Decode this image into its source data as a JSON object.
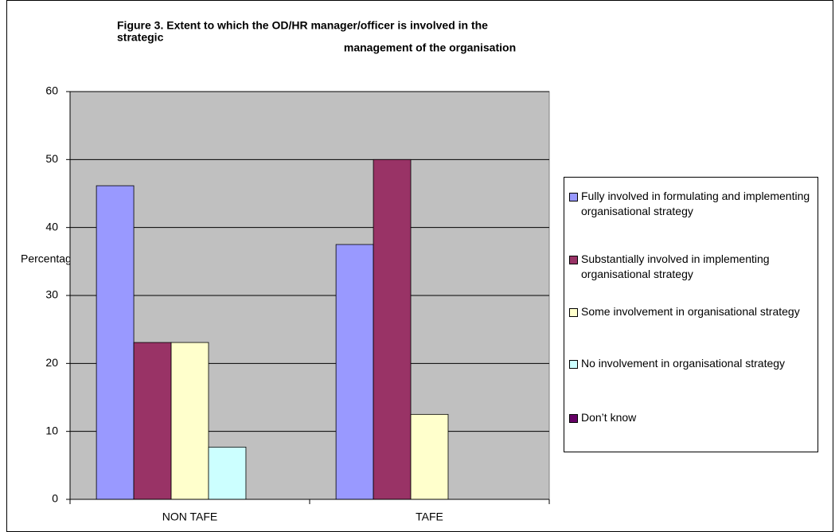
{
  "chart_data": {
    "type": "bar",
    "title_lines": [
      "Figure 3.  Extent to which the OD/HR manager/officer is involved in the",
      "strategic",
      "management of the organisation"
    ],
    "y_label": "Percentage",
    "categories": [
      "NON TAFE",
      "TAFE"
    ],
    "series": [
      {
        "name": "Fully involved in formulating and implementing organisational strategy",
        "color": "#9999ff",
        "values": [
          46.15,
          37.5
        ]
      },
      {
        "name": "Substantially involved in implementing organisational strategy",
        "color": "#993366",
        "values": [
          23.08,
          50
        ]
      },
      {
        "name": "Some involvement in organisational strategy",
        "color": "#ffffcc",
        "values": [
          23.08,
          12.5
        ]
      },
      {
        "name": "No involvement in organisational strategy",
        "color": "#ccffff",
        "values": [
          7.69,
          0
        ]
      },
      {
        "name": "Don’t know",
        "color": "#660066",
        "values": [
          0,
          0
        ]
      }
    ],
    "ylim": [
      0,
      60
    ],
    "yticks": [
      0,
      10,
      20,
      30,
      40,
      50,
      60
    ],
    "grid": true,
    "legend": "right"
  }
}
